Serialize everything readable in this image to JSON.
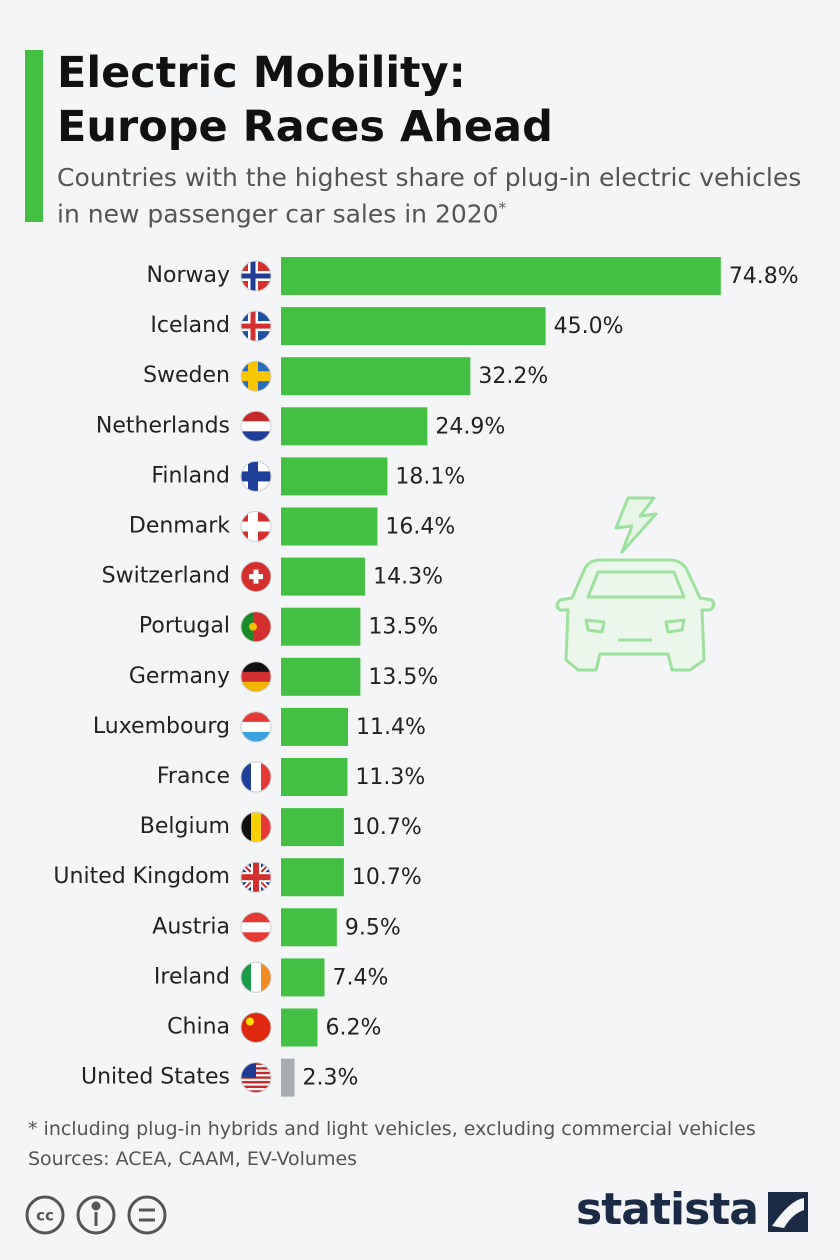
{
  "chart_data": {
    "type": "bar",
    "title": "Electric Mobility: Europe Races Ahead",
    "subtitle": "Countries with the highest share of plug-in electric vehicles in new passenger car sales in 2020",
    "subtitle_note_mark": "*",
    "categories": [
      "Norway",
      "Iceland",
      "Sweden",
      "Netherlands",
      "Finland",
      "Denmark",
      "Switzerland",
      "Portugal",
      "Germany",
      "Luxembourg",
      "France",
      "Belgium",
      "United Kingdom",
      "Austria",
      "Ireland",
      "China",
      "United States"
    ],
    "values": [
      74.8,
      45.0,
      32.2,
      24.9,
      18.1,
      16.4,
      14.3,
      13.5,
      13.5,
      11.4,
      11.3,
      10.7,
      10.7,
      9.5,
      7.4,
      6.2,
      2.3
    ],
    "value_labels": [
      "74.8%",
      "45.0%",
      "32.2%",
      "24.9%",
      "18.1%",
      "16.4%",
      "14.3%",
      "13.5%",
      "13.5%",
      "11.4%",
      "11.3%",
      "10.7%",
      "10.7%",
      "9.5%",
      "7.4%",
      "6.2%",
      "2.3%"
    ],
    "colors": [
      "#43c043",
      "#43c043",
      "#43c043",
      "#43c043",
      "#43c043",
      "#43c043",
      "#43c043",
      "#43c043",
      "#43c043",
      "#43c043",
      "#43c043",
      "#43c043",
      "#43c043",
      "#43c043",
      "#43c043",
      "#43c043",
      "#a9adb2"
    ],
    "footnote": "* including plug-in hybrids and light vehicles, excluding commercial vehicles",
    "source": "Sources: ACEA, CAAM, EV-Volumes",
    "brand": "statista"
  }
}
